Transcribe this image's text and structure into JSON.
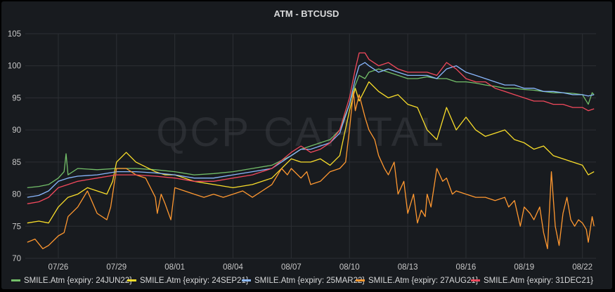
{
  "chart_data": {
    "type": "line",
    "title": "ATM - BTCUSD",
    "watermark": "QCP CAPITAL",
    "xlabel": "",
    "ylabel": "",
    "grid": true,
    "legend_position": "bottom",
    "x_ticks": [
      "07/26",
      "07/29",
      "08/01",
      "08/04",
      "08/07",
      "08/10",
      "08/13",
      "08/16",
      "08/19",
      "08/22"
    ],
    "x_tick_days": [
      0,
      3,
      6,
      9,
      12,
      15,
      18,
      21,
      24,
      27
    ],
    "xlim_days": [
      -1.7,
      27.7
    ],
    "y_ticks": [
      70,
      75,
      80,
      85,
      90,
      95,
      100,
      105
    ],
    "ylim": [
      70,
      105
    ],
    "series": [
      {
        "name": "SMILE.Atm {expiry: 24JUN22}",
        "color": "#73bf69",
        "x_days": [
          -1.6,
          -1.0,
          -0.5,
          0.0,
          0.3,
          0.4,
          0.5,
          1.0,
          2.0,
          3.0,
          4.0,
          5.0,
          6.0,
          7.0,
          8.0,
          9.0,
          10.0,
          11.0,
          12.0,
          12.5,
          13.0,
          13.5,
          14.0,
          14.5,
          15.0,
          15.3,
          15.5,
          15.8,
          16.0,
          16.5,
          17.0,
          17.5,
          18.0,
          18.5,
          19.0,
          19.5,
          20.0,
          20.5,
          21.0,
          21.5,
          22.0,
          22.5,
          23.0,
          23.5,
          24.0,
          24.5,
          25.0,
          25.5,
          26.0,
          26.5,
          27.0,
          27.3,
          27.5,
          27.6
        ],
        "values": [
          81.0,
          81.2,
          81.5,
          82.5,
          83.5,
          86.3,
          83.0,
          84.0,
          83.8,
          84.0,
          84.0,
          83.8,
          83.5,
          83.0,
          83.2,
          83.5,
          84.0,
          84.5,
          86.0,
          87.0,
          87.5,
          88.0,
          88.5,
          90.0,
          94.0,
          97.0,
          98.5,
          98.0,
          99.0,
          99.5,
          99.0,
          98.5,
          98.0,
          98.0,
          98.3,
          98.0,
          98.0,
          97.5,
          97.5,
          97.3,
          97.0,
          96.8,
          96.5,
          96.5,
          96.3,
          96.2,
          96.0,
          95.8,
          95.8,
          95.7,
          95.5,
          94.0,
          95.8,
          95.5
        ]
      },
      {
        "name": "SMILE.Atm {expiry: 24SEP21}",
        "color": "#fade2a",
        "x_days": [
          -1.6,
          -1.0,
          -0.5,
          0.0,
          0.5,
          1.0,
          1.5,
          2.0,
          2.5,
          2.8,
          3.0,
          3.5,
          4.0,
          5.0,
          5.5,
          6.0,
          7.0,
          8.0,
          9.0,
          10.0,
          11.0,
          12.0,
          12.5,
          13.0,
          13.5,
          14.0,
          14.5,
          15.0,
          15.3,
          15.5,
          16.0,
          16.5,
          17.0,
          17.5,
          18.0,
          18.5,
          19.0,
          19.5,
          20.0,
          20.5,
          21.0,
          21.5,
          22.0,
          22.5,
          23.0,
          23.5,
          24.0,
          24.5,
          25.0,
          25.5,
          26.0,
          26.5,
          27.0,
          27.3,
          27.6
        ],
        "values": [
          75.5,
          75.8,
          75.5,
          78.0,
          79.5,
          80.0,
          81.0,
          80.5,
          80.0,
          82.0,
          85.0,
          86.5,
          85.0,
          83.5,
          83.0,
          83.0,
          82.0,
          81.5,
          81.0,
          81.5,
          82.5,
          85.5,
          85.0,
          85.0,
          85.5,
          84.5,
          86.0,
          93.0,
          96.5,
          94.5,
          97.5,
          96.0,
          95.0,
          95.5,
          94.0,
          93.5,
          90.0,
          88.5,
          93.5,
          90.0,
          92.0,
          90.0,
          89.0,
          89.5,
          90.0,
          88.5,
          88.0,
          87.0,
          87.5,
          86.0,
          85.5,
          85.0,
          84.5,
          83.0,
          83.5
        ]
      },
      {
        "name": "SMILE.Atm {expiry: 25MAR22}",
        "color": "#8ab8ff",
        "x_days": [
          -1.6,
          -1.0,
          -0.5,
          0.0,
          0.5,
          1.0,
          2.0,
          3.0,
          4.0,
          5.0,
          6.0,
          7.0,
          8.0,
          9.0,
          10.0,
          11.0,
          12.0,
          12.5,
          13.0,
          13.5,
          14.0,
          14.5,
          15.0,
          15.3,
          15.5,
          15.8,
          16.0,
          16.5,
          17.0,
          17.5,
          18.0,
          18.5,
          19.0,
          19.5,
          20.0,
          20.5,
          21.0,
          21.5,
          22.0,
          22.5,
          23.0,
          23.5,
          24.0,
          24.5,
          25.0,
          25.5,
          26.0,
          26.5,
          27.0,
          27.3,
          27.6
        ],
        "values": [
          79.5,
          79.8,
          80.5,
          82.0,
          82.5,
          82.8,
          83.0,
          83.5,
          83.5,
          83.3,
          83.0,
          82.5,
          82.5,
          83.0,
          83.5,
          84.0,
          86.0,
          87.0,
          87.0,
          87.5,
          88.0,
          89.5,
          94.0,
          98.0,
          100.0,
          100.5,
          100.0,
          99.0,
          99.5,
          99.0,
          98.5,
          98.5,
          98.5,
          98.0,
          99.5,
          100.0,
          99.0,
          98.5,
          98.0,
          97.5,
          97.0,
          97.0,
          96.5,
          96.5,
          96.0,
          96.0,
          95.8,
          95.5,
          95.5,
          95.3,
          95.5
        ]
      },
      {
        "name": "SMILE.Atm {expiry: 27AUG21}",
        "color": "#ff9830",
        "x_days": [
          -1.6,
          -1.2,
          -0.8,
          -0.5,
          0.0,
          0.3,
          0.5,
          1.0,
          1.5,
          2.0,
          2.5,
          2.7,
          3.0,
          3.5,
          4.0,
          4.5,
          5.0,
          5.1,
          5.3,
          5.5,
          5.8,
          6.0,
          6.5,
          7.0,
          7.5,
          8.0,
          8.5,
          9.0,
          9.5,
          10.0,
          10.5,
          11.0,
          11.5,
          11.8,
          12.0,
          12.5,
          12.8,
          13.0,
          13.5,
          14.0,
          14.5,
          14.8,
          15.0,
          15.2,
          15.3,
          15.5,
          15.8,
          16.0,
          16.3,
          16.5,
          16.8,
          17.0,
          17.3,
          17.5,
          17.8,
          18.0,
          18.3,
          18.5,
          18.7,
          18.9,
          19.0,
          19.2,
          19.5,
          19.8,
          20.0,
          20.3,
          20.5,
          21.0,
          21.5,
          22.0,
          22.5,
          23.0,
          23.2,
          23.5,
          23.8,
          24.0,
          24.3,
          24.5,
          24.8,
          25.0,
          25.2,
          25.4,
          25.6,
          25.8,
          26.0,
          26.2,
          26.4,
          26.6,
          26.8,
          27.0,
          27.2,
          27.3,
          27.5,
          27.6
        ],
        "values": [
          72.5,
          73.0,
          71.5,
          72.0,
          73.5,
          74.0,
          76.5,
          78.0,
          80.5,
          77.0,
          76.0,
          78.0,
          84.0,
          84.0,
          83.0,
          82.5,
          79.5,
          77.0,
          80.0,
          78.5,
          76.0,
          81.0,
          80.5,
          80.0,
          79.5,
          80.0,
          79.5,
          80.0,
          80.5,
          79.5,
          80.5,
          81.5,
          84.0,
          83.0,
          84.0,
          82.5,
          83.5,
          81.5,
          82.0,
          83.5,
          84.0,
          85.0,
          90.0,
          96.0,
          93.0,
          95.5,
          92.0,
          90.0,
          88.5,
          86.0,
          84.0,
          83.0,
          85.0,
          80.0,
          82.0,
          77.0,
          80.0,
          75.5,
          77.5,
          76.5,
          80.0,
          78.0,
          84.0,
          82.0,
          82.5,
          80.0,
          80.5,
          80.0,
          79.5,
          79.5,
          79.0,
          79.5,
          78.0,
          79.0,
          75.0,
          78.0,
          77.0,
          76.0,
          78.0,
          74.0,
          71.5,
          83.5,
          75.0,
          72.0,
          77.0,
          79.5,
          76.0,
          75.0,
          76.0,
          75.5,
          74.5,
          72.5,
          76.5,
          75.0
        ]
      },
      {
        "name": "SMILE.Atm {expiry: 31DEC21}",
        "color": "#f2495c",
        "x_days": [
          -1.6,
          -1.0,
          -0.5,
          0.0,
          0.5,
          1.0,
          2.0,
          3.0,
          4.0,
          5.0,
          6.0,
          7.0,
          8.0,
          9.0,
          10.0,
          11.0,
          12.0,
          12.5,
          13.0,
          13.5,
          14.0,
          14.5,
          15.0,
          15.3,
          15.5,
          15.8,
          16.0,
          16.5,
          17.0,
          17.5,
          18.0,
          18.5,
          19.0,
          19.5,
          20.0,
          20.5,
          21.0,
          21.5,
          22.0,
          22.5,
          23.0,
          23.5,
          24.0,
          24.5,
          25.0,
          25.5,
          26.0,
          26.5,
          27.0,
          27.3,
          27.6
        ],
        "values": [
          78.5,
          78.8,
          79.5,
          81.0,
          81.5,
          82.0,
          82.5,
          83.0,
          83.0,
          82.8,
          82.5,
          82.0,
          82.0,
          82.5,
          83.0,
          84.0,
          86.5,
          87.5,
          86.5,
          87.0,
          88.0,
          90.0,
          95.0,
          99.5,
          102.0,
          102.0,
          101.0,
          100.0,
          100.5,
          99.5,
          99.0,
          99.0,
          99.0,
          98.5,
          100.5,
          99.5,
          98.0,
          97.5,
          97.5,
          96.5,
          96.0,
          95.5,
          95.0,
          94.5,
          94.5,
          94.0,
          94.0,
          93.5,
          93.5,
          93.0,
          93.3
        ]
      }
    ]
  }
}
